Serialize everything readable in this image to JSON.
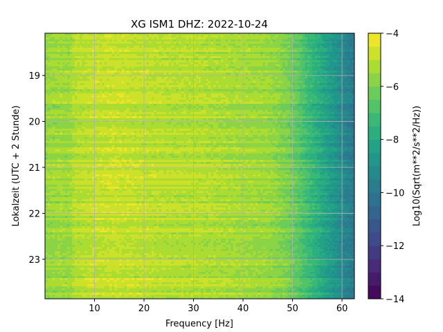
{
  "chart_data": {
    "type": "heatmap",
    "title": "XG ISM1  DHZ: 2022-10-24",
    "xlabel": "Frequency [Hz]",
    "ylabel": "Lokalzeit (UTC + 2 Stunde)",
    "xlim": [
      0,
      62.5
    ],
    "ylim": [
      18.08,
      23.86
    ],
    "y_inverted": true,
    "xticks": [
      10,
      20,
      30,
      40,
      50,
      60
    ],
    "xtick_labels": [
      "10",
      "20",
      "30",
      "40",
      "50",
      "60"
    ],
    "yticks": [
      19,
      20,
      21,
      22,
      23
    ],
    "ytick_labels": [
      "19",
      "20",
      "21",
      "22",
      "23"
    ],
    "grid": true,
    "colormap": "viridis",
    "colorbar": {
      "label": "Log10(Sqrt(m**2/s**2/Hz))",
      "range": [
        -14,
        -4
      ],
      "ticks": [
        -4,
        -6,
        -8,
        -10,
        -12,
        -14
      ],
      "tick_labels": [
        "−4",
        "−6",
        "−8",
        "−10",
        "−12",
        "−14"
      ],
      "levels": 20
    },
    "profile": {
      "frequencies_hz": [
        0,
        3,
        5,
        6,
        8,
        10,
        14,
        18,
        22,
        26,
        30,
        34,
        38,
        42,
        45,
        47,
        49,
        51,
        53,
        55,
        57,
        59,
        61,
        62.5
      ],
      "values": [
        -5.6,
        -5.4,
        -5.5,
        -5.1,
        -5.0,
        -4.9,
        -4.8,
        -4.9,
        -5.0,
        -5.1,
        -5.1,
        -5.2,
        -5.3,
        -5.4,
        -5.5,
        -5.7,
        -6.0,
        -6.5,
        -7.1,
        -7.7,
        -8.3,
        -8.9,
        -9.5,
        -9.9
      ]
    }
  }
}
